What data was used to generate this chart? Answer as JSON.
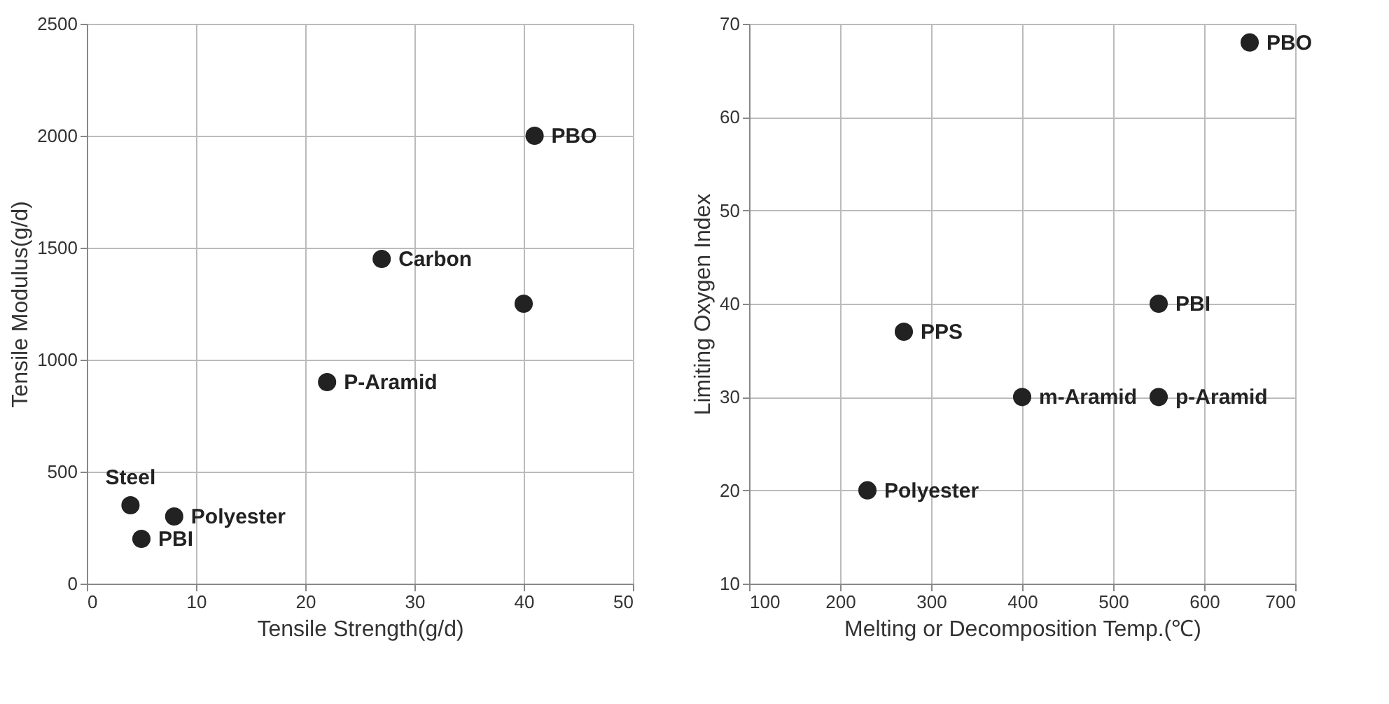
{
  "chart_data": [
    {
      "type": "scatter",
      "xlabel": "Tensile  Strength(g/d)",
      "ylabel": "Tensile Modulus(g/d)",
      "xlim": [
        0,
        50
      ],
      "xticks": [
        0,
        10,
        20,
        30,
        40,
        50
      ],
      "ylim": [
        0,
        2500
      ],
      "yticks": [
        0,
        500,
        1000,
        1500,
        2000,
        2500
      ],
      "grid": true,
      "marker": "circle",
      "series": [
        {
          "name": "Steel",
          "color": "#222222",
          "x": [
            4
          ],
          "values": [
            350
          ]
        },
        {
          "name": "PBI",
          "color": "#222222",
          "x": [
            5
          ],
          "values": [
            200
          ]
        },
        {
          "name": "Polyester",
          "color": "#222222",
          "x": [
            8
          ],
          "values": [
            300
          ]
        },
        {
          "name": "P-Aramid",
          "color": "#222222",
          "x": [
            22
          ],
          "values": [
            900
          ]
        },
        {
          "name": "Carbon",
          "color": "#222222",
          "x": [
            27
          ],
          "values": [
            1450
          ]
        },
        {
          "color": "#222222",
          "x": [
            40
          ],
          "values": [
            1250
          ]
        },
        {
          "name": "PBO",
          "color": "#222222",
          "x": [
            41
          ],
          "values": [
            2000
          ]
        }
      ]
    },
    {
      "type": "scatter",
      "xlabel": "Melting or Decomposition Temp.(℃)",
      "ylabel": "Limiting Oxygen Index",
      "xlim": [
        100,
        700
      ],
      "xticks": [
        100,
        200,
        300,
        400,
        500,
        600,
        700
      ],
      "ylim": [
        10,
        70
      ],
      "yticks": [
        10,
        20,
        30,
        40,
        50,
        60,
        70
      ],
      "grid": true,
      "marker": "circle",
      "series": [
        {
          "name": "Polyester",
          "color": "#222222",
          "x": [
            230
          ],
          "values": [
            20
          ]
        },
        {
          "name": "PPS",
          "color": "#222222",
          "x": [
            270
          ],
          "values": [
            37
          ]
        },
        {
          "name": "m-Aramid",
          "color": "#222222",
          "x": [
            400
          ],
          "values": [
            30
          ]
        },
        {
          "name": "PBI",
          "color": "#222222",
          "x": [
            550
          ],
          "values": [
            40
          ]
        },
        {
          "name": "p-Aramid",
          "color": "#222222",
          "x": [
            550
          ],
          "values": [
            30
          ]
        },
        {
          "name": "PBO",
          "color": "#222222",
          "x": [
            650
          ],
          "values": [
            68
          ]
        }
      ]
    }
  ]
}
